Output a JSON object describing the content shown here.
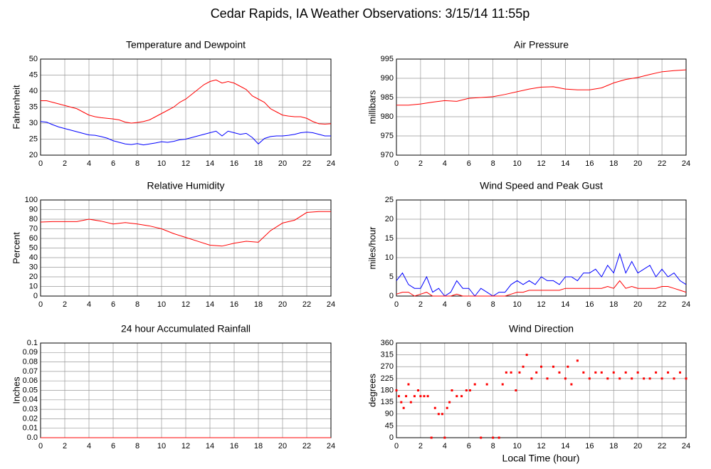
{
  "title": "Cedar Rapids, IA Weather Observations: 3/15/14 11:55p",
  "xlabel": "Local Time (hour)",
  "chart_data": [
    {
      "type": "line",
      "title": "Temperature and Dewpoint",
      "ylabel": "Fahrenheit",
      "x": [
        0,
        0.5,
        1,
        1.5,
        2,
        2.5,
        3,
        3.5,
        4,
        4.5,
        5,
        5.5,
        6,
        6.5,
        7,
        7.5,
        8,
        8.5,
        9,
        9.5,
        10,
        10.5,
        11,
        11.5,
        12,
        12.5,
        13,
        13.5,
        14,
        14.5,
        15,
        15.5,
        16,
        16.5,
        17,
        17.5,
        18,
        18.5,
        19,
        19.5,
        20,
        20.5,
        21,
        21.5,
        22,
        22.5,
        23,
        23.5,
        24
      ],
      "series": [
        {
          "color": "#ff0000",
          "values": [
            37,
            37,
            36.5,
            36,
            35.5,
            35,
            34.5,
            33.5,
            32.5,
            32,
            31.7,
            31.5,
            31.3,
            31,
            30.3,
            30,
            30.2,
            30.5,
            31,
            32,
            33,
            34,
            35,
            36.5,
            37.5,
            39,
            40.5,
            42,
            43,
            43.5,
            42.5,
            43,
            42.5,
            41.5,
            40.5,
            38.5,
            37.5,
            36.5,
            34.5,
            33.5,
            32.5,
            32.2,
            32,
            32,
            31.5,
            30.5,
            29.8,
            29.7,
            29.8
          ]
        },
        {
          "color": "#0000ff",
          "values": [
            30.5,
            30.3,
            29.5,
            28.8,
            28.3,
            27.8,
            27.3,
            26.8,
            26.3,
            26.2,
            25.8,
            25.3,
            24.5,
            24,
            23.5,
            23.3,
            23.6,
            23.2,
            23.5,
            23.8,
            24.2,
            24,
            24.3,
            24.8,
            25,
            25.5,
            26,
            26.5,
            27,
            27.5,
            26,
            27.5,
            27,
            26.5,
            26.8,
            25.5,
            23.5,
            25.2,
            25.8,
            26,
            26,
            26.2,
            26.5,
            27,
            27.2,
            27,
            26.5,
            26,
            26
          ]
        }
      ],
      "xlim": [
        0,
        24
      ],
      "xticks": [
        0,
        2,
        4,
        6,
        8,
        10,
        12,
        14,
        16,
        18,
        20,
        22,
        24
      ],
      "ylim": [
        20,
        50
      ],
      "yticks": [
        20,
        25,
        30,
        35,
        40,
        45,
        50
      ],
      "grid": true
    },
    {
      "type": "line",
      "title": "Air Pressure",
      "ylabel": "millibars",
      "x": [
        0,
        1,
        2,
        3,
        4,
        5,
        6,
        7,
        8,
        9,
        10,
        11,
        12,
        13,
        14,
        15,
        16,
        17,
        18,
        19,
        20,
        21,
        22,
        23,
        24
      ],
      "series": [
        {
          "color": "#ff0000",
          "values": [
            983,
            983,
            983.3,
            983.8,
            984.2,
            984,
            984.8,
            985,
            985.2,
            985.8,
            986.5,
            987.2,
            987.7,
            987.8,
            987.2,
            987,
            987,
            987.5,
            988.8,
            989.7,
            990.2,
            991,
            991.7,
            992,
            992.2
          ]
        }
      ],
      "xlim": [
        0,
        24
      ],
      "xticks": [
        0,
        2,
        4,
        6,
        8,
        10,
        12,
        14,
        16,
        18,
        20,
        22,
        24
      ],
      "ylim": [
        970,
        995
      ],
      "yticks": [
        970,
        975,
        980,
        985,
        990,
        995
      ],
      "grid": true
    },
    {
      "type": "line",
      "title": "Relative Humidity",
      "ylabel": "Percent",
      "x": [
        0,
        1,
        2,
        3,
        4,
        5,
        6,
        7,
        8,
        9,
        10,
        11,
        12,
        13,
        14,
        15,
        16,
        17,
        18,
        19,
        20,
        21,
        22,
        23,
        24
      ],
      "series": [
        {
          "color": "#ff0000",
          "values": [
            77,
            77.5,
            77.5,
            77.5,
            80,
            78,
            75,
            76.5,
            75,
            73,
            70,
            65,
            61,
            57,
            53,
            52,
            55,
            57,
            56,
            68,
            76,
            79,
            87,
            88,
            88
          ]
        }
      ],
      "xlim": [
        0,
        24
      ],
      "xticks": [
        0,
        2,
        4,
        6,
        8,
        10,
        12,
        14,
        16,
        18,
        20,
        22,
        24
      ],
      "ylim": [
        0,
        100
      ],
      "yticks": [
        0,
        10,
        20,
        30,
        40,
        50,
        60,
        70,
        80,
        90,
        100
      ],
      "grid": true
    },
    {
      "type": "line",
      "title": "Wind Speed and Peak Gust",
      "ylabel": "miles/hour",
      "x": [
        0,
        0.5,
        1,
        1.5,
        2,
        2.5,
        3,
        3.5,
        4,
        4.5,
        5,
        5.5,
        6,
        6.5,
        7,
        7.5,
        8,
        8.5,
        9,
        9.5,
        10,
        10.5,
        11,
        11.5,
        12,
        12.5,
        13,
        13.5,
        14,
        14.5,
        15,
        15.5,
        16,
        16.5,
        17,
        17.5,
        18,
        18.5,
        19,
        19.5,
        20,
        20.5,
        21,
        21.5,
        22,
        22.5,
        23,
        23.5,
        24
      ],
      "series": [
        {
          "color": "#0000ff",
          "values": [
            4,
            6,
            3,
            2,
            2,
            5,
            1,
            2,
            0,
            1,
            4,
            2,
            2,
            0,
            2,
            1,
            0,
            1,
            1,
            3,
            4,
            3,
            4,
            3,
            5,
            4,
            4,
            3,
            5,
            5,
            4,
            6,
            6,
            7,
            5,
            8,
            6,
            11,
            6,
            9,
            6,
            7,
            8,
            5,
            7,
            5,
            6,
            4,
            3
          ]
        },
        {
          "color": "#ff0000",
          "values": [
            0.5,
            1,
            1,
            0,
            0.5,
            1,
            0,
            0,
            0,
            0,
            0.5,
            0,
            0,
            0,
            0,
            0,
            0,
            0,
            0,
            0.5,
            1,
            1,
            1.5,
            1.5,
            1.5,
            1.5,
            1.5,
            1.5,
            2,
            2,
            2,
            2,
            2,
            2,
            2,
            2.5,
            2,
            4,
            2,
            2.5,
            2,
            2,
            2,
            2,
            2.5,
            2.5,
            2,
            1.5,
            1
          ]
        }
      ],
      "xlim": [
        0,
        24
      ],
      "xticks": [
        0,
        2,
        4,
        6,
        8,
        10,
        12,
        14,
        16,
        18,
        20,
        22,
        24
      ],
      "ylim": [
        0,
        25
      ],
      "yticks": [
        0,
        5,
        10,
        15,
        20,
        25
      ],
      "grid": true
    },
    {
      "type": "line",
      "title": "24 hour Accumulated Rainfall",
      "ylabel": "Inches",
      "x": [
        0,
        24
      ],
      "series": [
        {
          "color": "#ff0000",
          "values": [
            0,
            0
          ]
        }
      ],
      "xlim": [
        0,
        24
      ],
      "xticks": [
        0,
        2,
        4,
        6,
        8,
        10,
        12,
        14,
        16,
        18,
        20,
        22,
        24
      ],
      "ylim": [
        0,
        0.1
      ],
      "yticks": [
        {
          "value": 0,
          "label": "0.0"
        },
        0.01,
        0.02,
        0.03,
        0.04,
        0.05,
        0.06,
        0.07,
        0.08,
        0.09,
        0.1
      ],
      "grid": true
    },
    {
      "type": "scatter",
      "title": "Wind Direction",
      "ylabel": "degrees",
      "color": "#ff0000",
      "x": [
        0,
        0.2,
        0.4,
        0.6,
        0.8,
        1,
        1.2,
        1.5,
        1.8,
        2,
        2.3,
        2.6,
        2.9,
        3.2,
        3.5,
        3.8,
        4,
        4.2,
        4.4,
        4.6,
        5,
        5.4,
        5.8,
        6.1,
        6.5,
        7,
        7.5,
        8,
        8.5,
        8.8,
        9.1,
        9.5,
        9.9,
        10.2,
        10.5,
        10.8,
        11.2,
        11.6,
        12,
        12.5,
        13,
        13.5,
        14,
        14.2,
        14.5,
        15,
        15.5,
        16,
        16.5,
        17,
        17.5,
        18,
        18.5,
        19,
        19.5,
        20,
        20.5,
        21,
        21.5,
        22,
        22.5,
        23,
        23.5,
        24
      ],
      "values": [
        180,
        158,
        135,
        113,
        158,
        203,
        135,
        158,
        180,
        158,
        158,
        158,
        0,
        113,
        90,
        90,
        0,
        113,
        135,
        180,
        158,
        158,
        180,
        180,
        203,
        0,
        203,
        0,
        0,
        203,
        248,
        248,
        180,
        248,
        270,
        315,
        225,
        248,
        270,
        225,
        270,
        248,
        225,
        270,
        203,
        293,
        248,
        225,
        248,
        248,
        225,
        248,
        225,
        248,
        225,
        248,
        225,
        225,
        248,
        225,
        248,
        225,
        248,
        225
      ],
      "xlim": [
        0,
        24
      ],
      "xticks": [
        0,
        2,
        4,
        6,
        8,
        10,
        12,
        14,
        16,
        18,
        20,
        22,
        24
      ],
      "ylim": [
        0,
        360
      ],
      "yticks": [
        0,
        45,
        90,
        135,
        180,
        225,
        270,
        315,
        360
      ],
      "grid": true
    }
  ]
}
